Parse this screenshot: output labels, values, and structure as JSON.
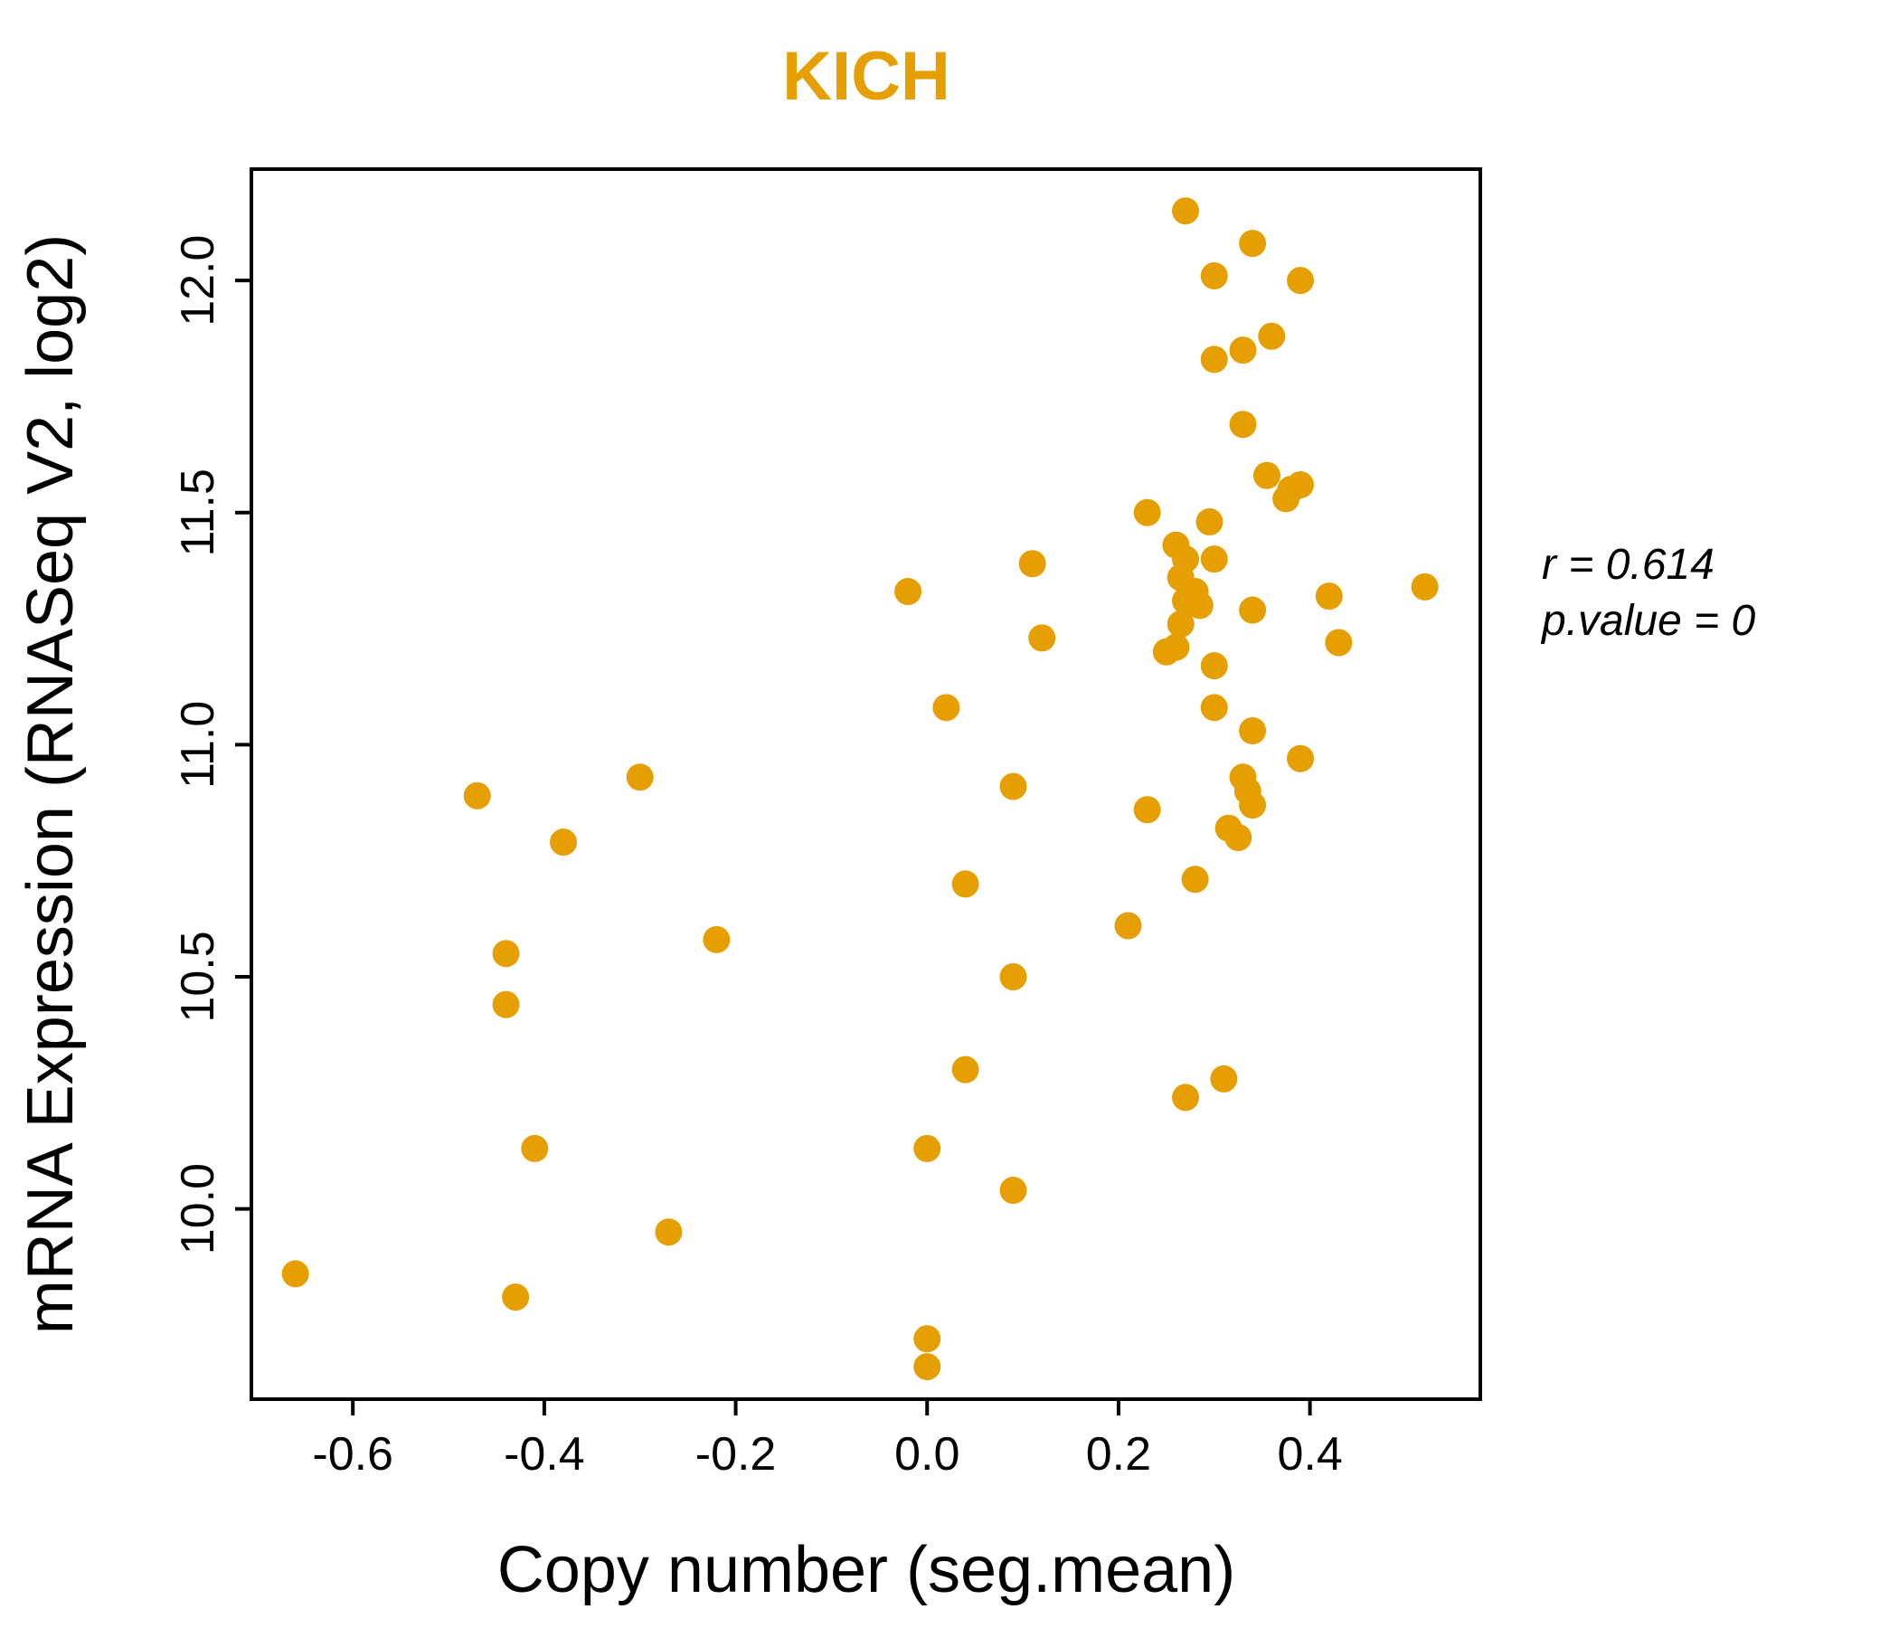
{
  "colors": {
    "accent": "#E69F00",
    "points": "#E69F00",
    "text": "#000000"
  },
  "annotation": {
    "line1": "r = 0.614",
    "line2": "p.value = 0"
  },
  "chart_data": {
    "type": "scatter",
    "title": "KICH",
    "xlabel": "Copy number (seg.mean)",
    "ylabel": "mRNA Expression (RNASeq V2, log2)",
    "xlim": [
      -0.706,
      0.578
    ],
    "ylim": [
      9.59,
      12.24
    ],
    "x_ticks": [
      -0.6,
      -0.4,
      -0.2,
      0.0,
      0.2,
      0.4
    ],
    "y_ticks": [
      10.0,
      10.5,
      11.0,
      11.5,
      12.0
    ],
    "legend": "none",
    "grid": false,
    "r": 0.614,
    "p_value": 0,
    "points": [
      [
        0.27,
        12.15
      ],
      [
        0.34,
        12.08
      ],
      [
        0.3,
        12.01
      ],
      [
        0.39,
        12.0
      ],
      [
        0.36,
        11.88
      ],
      [
        0.33,
        11.85
      ],
      [
        0.3,
        11.83
      ],
      [
        0.33,
        11.69
      ],
      [
        0.355,
        11.58
      ],
      [
        0.39,
        11.56
      ],
      [
        0.375,
        11.53
      ],
      [
        0.38,
        11.55
      ],
      [
        0.23,
        11.5
      ],
      [
        0.295,
        11.48
      ],
      [
        0.26,
        11.43
      ],
      [
        0.27,
        11.4
      ],
      [
        0.3,
        11.4
      ],
      [
        0.11,
        11.39
      ],
      [
        0.265,
        11.36
      ],
      [
        0.28,
        11.33
      ],
      [
        0.27,
        11.31
      ],
      [
        0.285,
        11.3
      ],
      [
        0.42,
        11.32
      ],
      [
        0.52,
        11.34
      ],
      [
        -0.02,
        11.33
      ],
      [
        0.34,
        11.29
      ],
      [
        0.265,
        11.26
      ],
      [
        0.12,
        11.23
      ],
      [
        0.43,
        11.22
      ],
      [
        0.25,
        11.2
      ],
      [
        0.26,
        11.21
      ],
      [
        0.3,
        11.17
      ],
      [
        0.3,
        11.08
      ],
      [
        0.02,
        11.08
      ],
      [
        0.34,
        11.03
      ],
      [
        0.39,
        10.97
      ],
      [
        0.09,
        10.91
      ],
      [
        0.33,
        10.93
      ],
      [
        0.335,
        10.9
      ],
      [
        0.34,
        10.87
      ],
      [
        0.23,
        10.86
      ],
      [
        -0.3,
        10.93
      ],
      [
        -0.47,
        10.89
      ],
      [
        -0.38,
        10.79
      ],
      [
        0.315,
        10.82
      ],
      [
        0.325,
        10.8
      ],
      [
        0.28,
        10.71
      ],
      [
        0.04,
        10.7
      ],
      [
        0.21,
        10.61
      ],
      [
        -0.22,
        10.58
      ],
      [
        -0.44,
        10.55
      ],
      [
        0.09,
        10.5
      ],
      [
        -0.44,
        10.44
      ],
      [
        0.04,
        10.3
      ],
      [
        0.31,
        10.28
      ],
      [
        0.27,
        10.24
      ],
      [
        -0.41,
        10.13
      ],
      [
        0.0,
        10.13
      ],
      [
        0.09,
        10.04
      ],
      [
        -0.27,
        9.95
      ],
      [
        -0.66,
        9.86
      ],
      [
        -0.43,
        9.81
      ],
      [
        0.0,
        9.72
      ],
      [
        0.0,
        9.66
      ]
    ]
  }
}
